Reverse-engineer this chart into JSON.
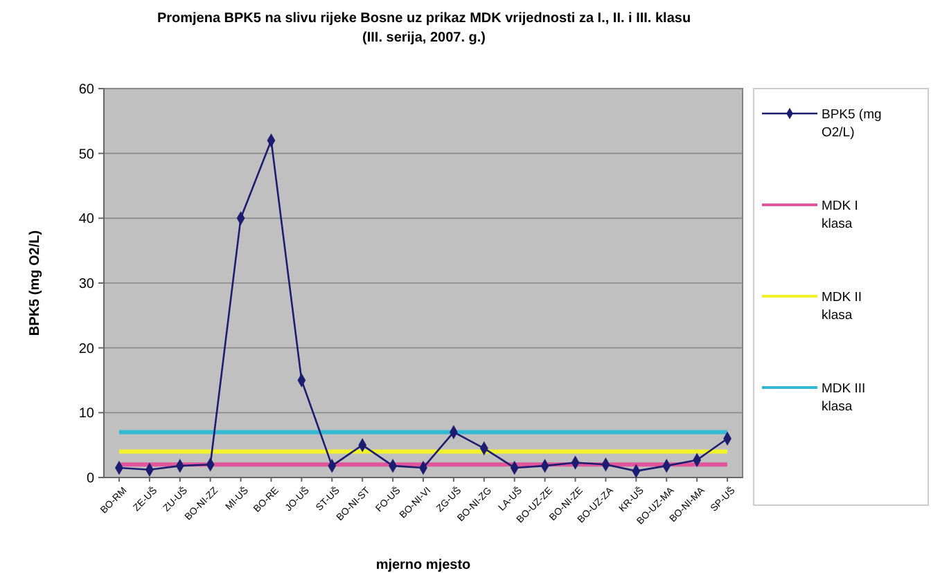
{
  "chart_data": {
    "type": "line",
    "title": "Promjena BPK5 na slivu rijeke Bosne uz prikaz MDK vrijednosti za I., II. i III. klasu",
    "subtitle": "(III. serija, 2007. g.)",
    "xlabel": "mjerno mjesto",
    "ylabel": "BPK5 (mg O2/L)",
    "categories": [
      "BO-RM",
      "ZE-UŠ",
      "ZU-UŠ",
      "BO-NI-ZZ",
      "MI-UŠ",
      "BO-RE",
      "JO-UŠ",
      "ST-UŠ",
      "BO-NI-ST",
      "FO-UŠ",
      "BO-NI-VI",
      "ZG-UŠ",
      "BO-NI-ZG",
      "LA-UŠ",
      "BO-UZ-ZE",
      "BO-NI-ZE",
      "BO-UZ-ZA",
      "KR-UŠ",
      "BO-UZ-MA",
      "BO-NI-MA",
      "SP-UŠ"
    ],
    "series": [
      {
        "name": "BPK5 (mg O2/L)",
        "color": "#1c1c70",
        "marker": "diamond",
        "values": [
          1.5,
          1.2,
          1.8,
          2,
          40,
          52,
          15,
          1.8,
          5,
          1.8,
          1.5,
          7,
          4.5,
          1.5,
          1.8,
          2.3,
          2,
          1,
          1.8,
          2.7,
          6
        ]
      },
      {
        "name": "MDK I klasa",
        "color": "#e0559c",
        "marker": "none",
        "values": [
          2,
          2,
          2,
          2,
          2,
          2,
          2,
          2,
          2,
          2,
          2,
          2,
          2,
          2,
          2,
          2,
          2,
          2,
          2,
          2,
          2
        ]
      },
      {
        "name": "MDK II klasa",
        "color": "#f2f22a",
        "marker": "none",
        "values": [
          4,
          4,
          4,
          4,
          4,
          4,
          4,
          4,
          4,
          4,
          4,
          4,
          4,
          4,
          4,
          4,
          4,
          4,
          4,
          4,
          4
        ]
      },
      {
        "name": "MDK III klasa",
        "color": "#33b9d2",
        "marker": "none",
        "values": [
          7,
          7,
          7,
          7,
          7,
          7,
          7,
          7,
          7,
          7,
          7,
          7,
          7,
          7,
          7,
          7,
          7,
          7,
          7,
          7,
          7
        ]
      }
    ],
    "ylim": [
      0,
      60
    ],
    "yticks": [
      0,
      10,
      20,
      30,
      40,
      50,
      60
    ],
    "grid": "y",
    "legend": "right"
  }
}
